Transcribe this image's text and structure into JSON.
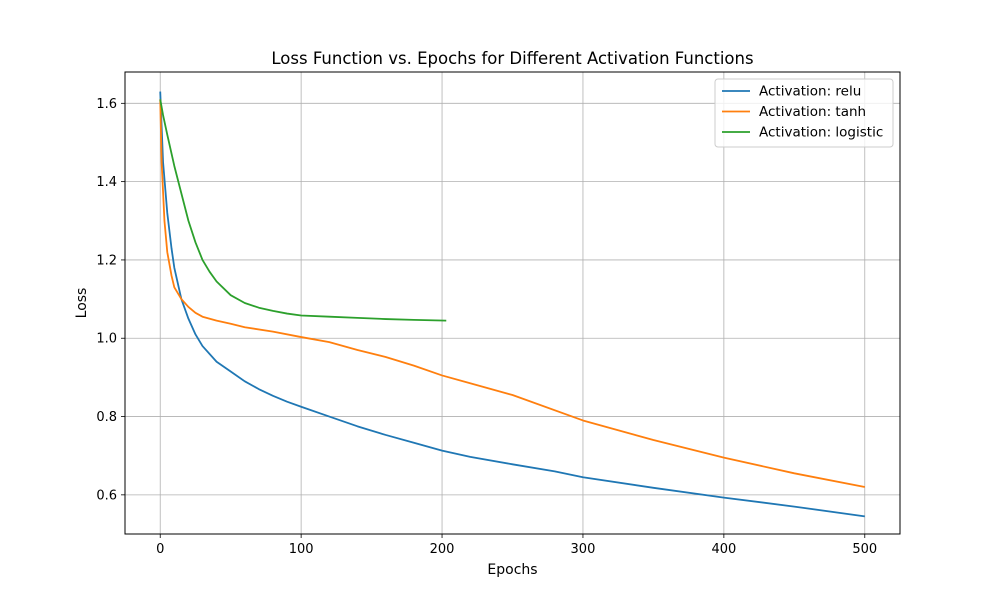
{
  "chart_data": {
    "type": "line",
    "title": "Loss Function vs. Epochs for Different Activation Functions",
    "xlabel": "Epochs",
    "ylabel": "Loss",
    "xlim": [
      -25,
      525
    ],
    "ylim": [
      0.5,
      1.68
    ],
    "xticks": [
      0,
      100,
      200,
      300,
      400,
      500
    ],
    "yticks": [
      0.6,
      0.8,
      1.0,
      1.2,
      1.4,
      1.6
    ],
    "xtick_labels": [
      "0",
      "100",
      "200",
      "300",
      "400",
      "500"
    ],
    "ytick_labels": [
      "0.6",
      "0.8",
      "1.0",
      "1.2",
      "1.4",
      "1.6"
    ],
    "grid": true,
    "legend_position": "top-right",
    "series": [
      {
        "name": "Activation: relu",
        "color": "#1f77b4",
        "x": [
          0,
          2,
          5,
          8,
          10,
          15,
          20,
          25,
          30,
          40,
          50,
          60,
          70,
          80,
          90,
          100,
          120,
          140,
          160,
          180,
          200,
          220,
          250,
          280,
          300,
          350,
          400,
          450,
          500
        ],
        "y": [
          1.63,
          1.45,
          1.32,
          1.23,
          1.18,
          1.1,
          1.05,
          1.01,
          0.98,
          0.94,
          0.915,
          0.89,
          0.87,
          0.853,
          0.838,
          0.825,
          0.8,
          0.775,
          0.753,
          0.733,
          0.713,
          0.697,
          0.678,
          0.66,
          0.645,
          0.618,
          0.593,
          0.57,
          0.545
        ]
      },
      {
        "name": "Activation: tanh",
        "color": "#ff7f0e",
        "x": [
          0,
          1,
          3,
          5,
          8,
          10,
          15,
          20,
          25,
          30,
          40,
          50,
          60,
          80,
          100,
          120,
          140,
          160,
          180,
          200,
          250,
          300,
          350,
          400,
          450,
          500
        ],
        "y": [
          1.61,
          1.45,
          1.3,
          1.22,
          1.16,
          1.13,
          1.1,
          1.08,
          1.065,
          1.055,
          1.045,
          1.037,
          1.028,
          1.017,
          1.003,
          0.99,
          0.97,
          0.952,
          0.93,
          0.905,
          0.855,
          0.79,
          0.74,
          0.695,
          0.655,
          0.62
        ]
      },
      {
        "name": "Activation: logistic",
        "color": "#2ca02c",
        "x": [
          0,
          2,
          5,
          10,
          15,
          20,
          25,
          30,
          35,
          40,
          50,
          60,
          70,
          80,
          90,
          100,
          120,
          140,
          160,
          180,
          203
        ],
        "y": [
          1.61,
          1.57,
          1.52,
          1.44,
          1.37,
          1.3,
          1.245,
          1.2,
          1.17,
          1.145,
          1.11,
          1.09,
          1.078,
          1.07,
          1.063,
          1.058,
          1.055,
          1.052,
          1.049,
          1.047,
          1.045
        ]
      }
    ]
  }
}
